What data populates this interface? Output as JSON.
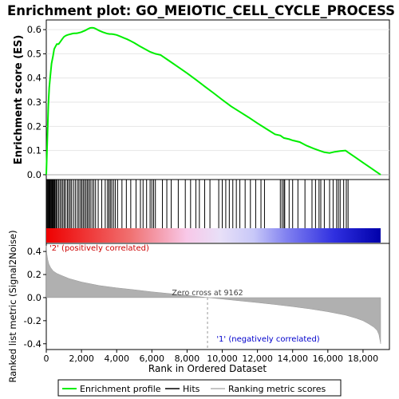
{
  "chart_data": {
    "type": "line",
    "title": "Enrichment plot: GO_MEIOTIC_CELL_CYCLE_PROCESS",
    "es_panel": {
      "ylabel": "Enrichment score (ES)",
      "ylim": [
        -0.02,
        0.64
      ],
      "yticks": [
        "0.0",
        "0.1",
        "0.2",
        "0.3",
        "0.4",
        "0.5",
        "0.6"
      ],
      "ytick_values": [
        0.0,
        0.1,
        0.2,
        0.3,
        0.4,
        0.5,
        0.6
      ],
      "series": [
        {
          "name": "Enrichment profile",
          "color": "#00ee00",
          "x": [
            0,
            40,
            80,
            120,
            170,
            230,
            300,
            380,
            450,
            520,
            600,
            700,
            800,
            900,
            1000,
            1100,
            1200,
            1300,
            1400,
            1500,
            1600,
            1700,
            1800,
            1900,
            2000,
            2100,
            2200,
            2300,
            2400,
            2500,
            2600,
            2700,
            2800,
            2900,
            3000,
            3200,
            3400,
            3500,
            3600,
            3700,
            3800,
            4000,
            4200,
            4400,
            4600,
            4800,
            5000,
            5300,
            5600,
            5900,
            6200,
            6500,
            7000,
            7500,
            8000,
            8500,
            9000,
            9500,
            10000,
            10500,
            11000,
            11500,
            12000,
            12500,
            13000,
            13300,
            13500,
            13800,
            14000,
            14400,
            14800,
            15200,
            15500,
            15800,
            16100,
            16400,
            16700,
            17000,
            17200,
            17600,
            18000,
            18400,
            18800,
            19000
          ],
          "y": [
            0.0,
            0.1,
            0.2,
            0.29,
            0.36,
            0.41,
            0.46,
            0.49,
            0.52,
            0.53,
            0.54,
            0.54,
            0.55,
            0.56,
            0.57,
            0.575,
            0.578,
            0.58,
            0.582,
            0.584,
            0.585,
            0.585,
            0.586,
            0.588,
            0.59,
            0.593,
            0.596,
            0.6,
            0.604,
            0.607,
            0.608,
            0.607,
            0.604,
            0.6,
            0.596,
            0.59,
            0.585,
            0.583,
            0.582,
            0.582,
            0.581,
            0.578,
            0.572,
            0.566,
            0.56,
            0.553,
            0.545,
            0.532,
            0.52,
            0.508,
            0.5,
            0.495,
            0.47,
            0.445,
            0.42,
            0.393,
            0.365,
            0.338,
            0.31,
            0.283,
            0.26,
            0.237,
            0.213,
            0.19,
            0.167,
            0.162,
            0.152,
            0.147,
            0.142,
            0.135,
            0.12,
            0.108,
            0.1,
            0.093,
            0.09,
            0.095,
            0.098,
            0.1,
            0.09,
            0.07,
            0.05,
            0.03,
            0.01,
            0.0
          ]
        }
      ]
    },
    "hits_panel": {
      "legend_label": "Hits",
      "hit_ranks": [
        20,
        60,
        100,
        140,
        180,
        220,
        260,
        300,
        340,
        380,
        420,
        460,
        500,
        560,
        620,
        700,
        780,
        860,
        940,
        1020,
        1100,
        1200,
        1280,
        1360,
        1440,
        1550,
        1650,
        1760,
        1850,
        1940,
        2020,
        2100,
        2180,
        2260,
        2340,
        2420,
        2500,
        2600,
        2700,
        2800,
        2950,
        3150,
        3350,
        3480,
        3560,
        3640,
        3720,
        3820,
        3920,
        4050,
        4300,
        4550,
        4800,
        5100,
        5350,
        5500,
        5700,
        5900,
        6000,
        6100,
        6200,
        6600,
        6850,
        7100,
        7500,
        7900,
        8200,
        8500,
        8700,
        9000,
        9300,
        9800,
        10000,
        10200,
        10400,
        10600,
        10800,
        11000,
        11300,
        11600,
        11900,
        12200,
        12400,
        13300,
        13400,
        13500,
        13550,
        13800,
        14000,
        14300,
        14700,
        15100,
        15300,
        15500,
        15600,
        15800,
        16100,
        16300,
        16500,
        16600,
        16700,
        16900,
        17050,
        17150
      ]
    },
    "metric_panel": {
      "ylabel": "Ranked list metric (Signal2Noise)",
      "ylim": [
        -0.45,
        0.47
      ],
      "yticks": [
        "-0.4",
        "-0.2",
        "0.0",
        "0.2",
        "0.4"
      ],
      "ytick_values": [
        -0.4,
        -0.2,
        0.0,
        0.2,
        0.4
      ],
      "x": [
        0,
        30,
        80,
        150,
        250,
        400,
        600,
        900,
        1300,
        2000,
        3000,
        4000,
        5000,
        6000,
        7000,
        8000,
        9162,
        10000,
        11000,
        12000,
        13000,
        14000,
        15000,
        16000,
        17000,
        17600,
        18000,
        18300,
        18600,
        18800,
        18900,
        19000
      ],
      "values": [
        0.45,
        0.38,
        0.33,
        0.29,
        0.26,
        0.23,
        0.21,
        0.19,
        0.165,
        0.135,
        0.105,
        0.085,
        0.068,
        0.05,
        0.035,
        0.02,
        0.0,
        -0.012,
        -0.028,
        -0.043,
        -0.06,
        -0.078,
        -0.098,
        -0.122,
        -0.152,
        -0.178,
        -0.2,
        -0.225,
        -0.255,
        -0.285,
        -0.32,
        -0.4
      ],
      "zero_cross_label": "Zero cross at 9162",
      "zero_cross_rank": 9162,
      "pos_label": "'2' (positively correlated)",
      "neg_label": "'1' (negatively correlated)"
    },
    "xaxis": {
      "xlabel": "Rank in Ordered Dataset",
      "xlim": [
        0,
        19500
      ],
      "ticks": [
        0,
        2000,
        4000,
        6000,
        8000,
        10000,
        12000,
        14000,
        16000,
        18000
      ],
      "tick_labels": [
        "0",
        "2,000",
        "4,000",
        "6,000",
        "8,000",
        "10,000",
        "12,000",
        "14,000",
        "16,000",
        "18,000"
      ]
    },
    "legend": {
      "placement": "bottom",
      "items": [
        "Enrichment profile",
        "Hits",
        "Ranking metric scores"
      ]
    },
    "colors": {
      "profile": "#00ee00",
      "hits": "#000000",
      "metric_fill": "#b0b0b0",
      "axis": "#000000",
      "pos_label": "#cc0000",
      "neg_label": "#0000cc"
    }
  }
}
